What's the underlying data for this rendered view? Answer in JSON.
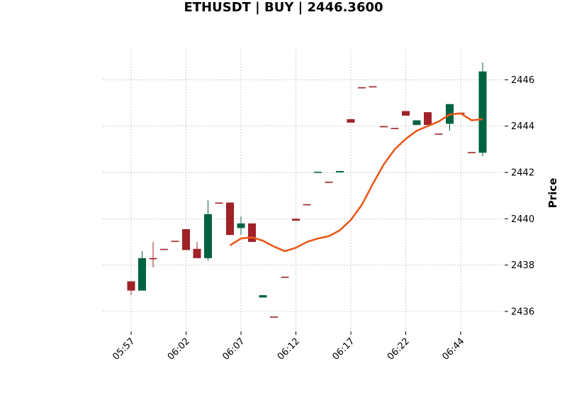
{
  "chart_data": {
    "type": "candlestick",
    "title": "ETHUSDT | BUY | 2446.3600",
    "ylabel": "Price",
    "ylim": [
      2435.2,
      2447.3
    ],
    "y_ticks": [
      2436,
      2438,
      2440,
      2442,
      2444,
      2446
    ],
    "x_tick_labels": [
      {
        "index": 0,
        "label": "05:57"
      },
      {
        "index": 5,
        "label": "06:02"
      },
      {
        "index": 10,
        "label": "06:07"
      },
      {
        "index": 15,
        "label": "06:12"
      },
      {
        "index": 20,
        "label": "06:17"
      },
      {
        "index": 25,
        "label": "06:22"
      },
      {
        "index": 30,
        "label": "06:44"
      }
    ],
    "grid": true,
    "up_color": "#006340",
    "down_color": "#A02128",
    "ma_color": "#E8591A",
    "candles": [
      {
        "o": 2437.3,
        "h": 2437.3,
        "l": 2436.7,
        "c": 2436.9
      },
      {
        "o": 2436.9,
        "h": 2438.6,
        "l": 2436.9,
        "c": 2438.3
      },
      {
        "o": 2438.3,
        "h": 2439.0,
        "l": 2437.9,
        "c": 2438.25
      },
      {
        "o": 2438.7,
        "h": 2438.7,
        "l": 2438.7,
        "c": 2438.68
      },
      {
        "o": 2439.05,
        "h": 2439.05,
        "l": 2439.05,
        "c": 2439.03
      },
      {
        "o": 2439.55,
        "h": 2439.55,
        "l": 2438.65,
        "c": 2438.65
      },
      {
        "o": 2438.7,
        "h": 2439.0,
        "l": 2438.3,
        "c": 2438.3
      },
      {
        "o": 2438.3,
        "h": 2440.8,
        "l": 2438.2,
        "c": 2440.2
      },
      {
        "o": 2440.7,
        "h": 2440.7,
        "l": 2440.7,
        "c": 2440.68
      },
      {
        "o": 2440.7,
        "h": 2440.7,
        "l": 2439.3,
        "c": 2439.3
      },
      {
        "o": 2439.6,
        "h": 2440.1,
        "l": 2439.3,
        "c": 2439.8
      },
      {
        "o": 2439.8,
        "h": 2439.8,
        "l": 2439.0,
        "c": 2439.0
      },
      {
        "o": 2436.6,
        "h": 2436.7,
        "l": 2436.6,
        "c": 2436.7
      },
      {
        "o": 2435.78,
        "h": 2435.78,
        "l": 2435.78,
        "c": 2435.76
      },
      {
        "o": 2437.5,
        "h": 2437.5,
        "l": 2437.5,
        "c": 2437.48
      },
      {
        "o": 2440.0,
        "h": 2440.0,
        "l": 2439.92,
        "c": 2439.92
      },
      {
        "o": 2440.63,
        "h": 2440.63,
        "l": 2440.63,
        "c": 2440.61
      },
      {
        "o": 2442.0,
        "h": 2442.03,
        "l": 2442.0,
        "c": 2442.03
      },
      {
        "o": 2441.6,
        "h": 2441.6,
        "l": 2441.6,
        "c": 2441.58
      },
      {
        "o": 2442.0,
        "h": 2442.06,
        "l": 2442.0,
        "c": 2442.06
      },
      {
        "o": 2444.3,
        "h": 2444.3,
        "l": 2444.15,
        "c": 2444.15
      },
      {
        "o": 2445.68,
        "h": 2445.68,
        "l": 2445.68,
        "c": 2445.66
      },
      {
        "o": 2445.72,
        "h": 2445.72,
        "l": 2445.72,
        "c": 2445.7
      },
      {
        "o": 2444.0,
        "h": 2444.0,
        "l": 2443.95,
        "c": 2443.95
      },
      {
        "o": 2443.92,
        "h": 2443.92,
        "l": 2443.92,
        "c": 2443.9
      },
      {
        "o": 2444.65,
        "h": 2444.65,
        "l": 2444.45,
        "c": 2444.45
      },
      {
        "o": 2444.05,
        "h": 2444.25,
        "l": 2444.05,
        "c": 2444.25
      },
      {
        "o": 2444.6,
        "h": 2444.6,
        "l": 2444.05,
        "c": 2444.05
      },
      {
        "o": 2443.68,
        "h": 2443.68,
        "l": 2443.68,
        "c": 2443.66
      },
      {
        "o": 2444.1,
        "h": 2444.95,
        "l": 2443.8,
        "c": 2444.95
      },
      {
        "o": 2444.58,
        "h": 2444.58,
        "l": 2444.52,
        "c": 2444.52
      },
      {
        "o": 2442.88,
        "h": 2442.88,
        "l": 2442.88,
        "c": 2442.86
      },
      {
        "o": 2442.85,
        "h": 2446.75,
        "l": 2442.7,
        "c": 2446.36
      }
    ],
    "moving_average": {
      "start_index": 9,
      "values": [
        2438.85,
        2439.15,
        2439.2,
        2439.05,
        2438.8,
        2438.6,
        2438.75,
        2439.0,
        2439.15,
        2439.25,
        2439.5,
        2439.95,
        2440.6,
        2441.5,
        2442.35,
        2443.0,
        2443.45,
        2443.8,
        2444.0,
        2444.2,
        2444.5,
        2444.55,
        2444.25,
        2444.3
      ]
    }
  }
}
